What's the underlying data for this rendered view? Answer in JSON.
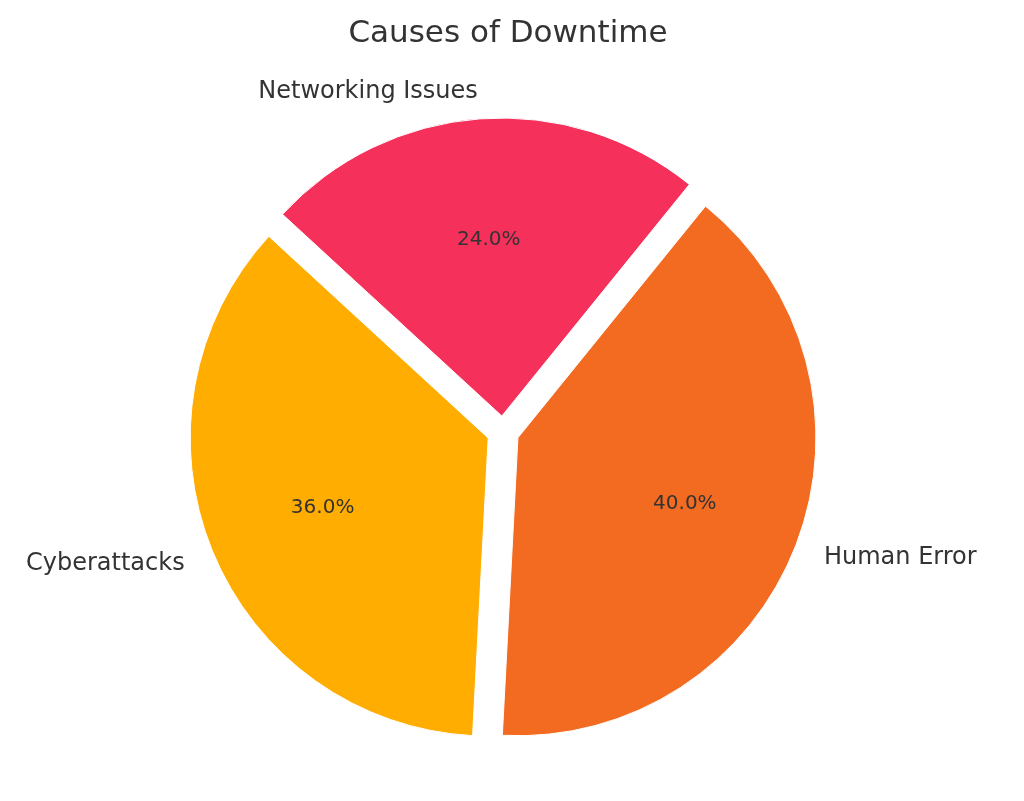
{
  "chart_data": {
    "type": "pie",
    "title": "Causes of Downtime",
    "categories": [
      "Human Error",
      "Networking Issues",
      "Cyberattacks"
    ],
    "values": [
      40,
      24,
      36
    ],
    "colors": [
      "#f26b21",
      "#f5305a",
      "#ffad00"
    ],
    "value_labels": [
      "40.0%",
      "24.0%",
      "36.0%"
    ]
  }
}
